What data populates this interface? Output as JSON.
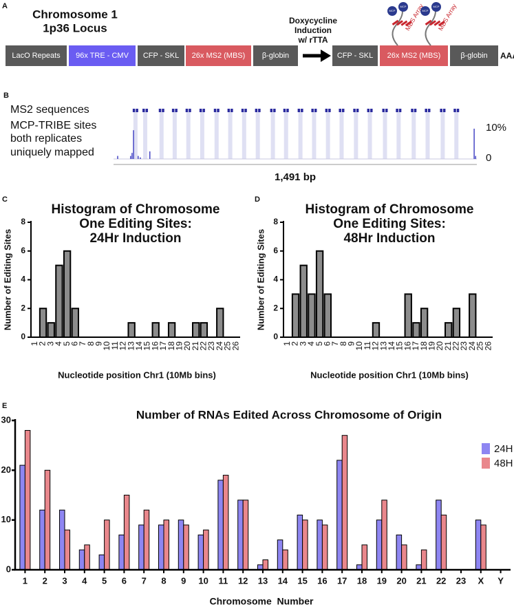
{
  "diagram": {
    "panel": "A",
    "locus": [
      "Chromosome 1",
      "1p36 Locus"
    ],
    "before": [
      {
        "label": "LacO Repeats",
        "color": "#595959"
      },
      {
        "label": "96x TRE - CMV",
        "color": "#6a5cf2"
      },
      {
        "label": "CFP - SKL",
        "color": "#595959"
      },
      {
        "label": "26x MS2 (MBS)",
        "color": "#d95a60"
      },
      {
        "label": "β-globin",
        "color": "#595959"
      }
    ],
    "induction": [
      "Doxycycline",
      "Induction",
      "w/ rTTA"
    ],
    "after": [
      {
        "label": "CFP - SKL",
        "color": "#595959"
      },
      {
        "label": "26x MS2 (MBS)",
        "color": "#d95a60"
      },
      {
        "label": "β-globin",
        "color": "#595959"
      }
    ],
    "tail": "AAAA",
    "array_label": "MBS Array",
    "mcp_label": "MCP"
  },
  "chart_data": [
    {
      "type": "track",
      "panel": "B",
      "track_labels": [
        "MS2 sequences",
        "MCP-TRIBE sites",
        "both replicates",
        "uniquely mapped"
      ],
      "ms2_positions": [
        90,
        130,
        197,
        251,
        307,
        364,
        423,
        479,
        536,
        592,
        654,
        708,
        767,
        823,
        880,
        936,
        995,
        1052,
        1114,
        1170,
        1232,
        1289,
        1351,
        1407
      ],
      "x": [
        17,
        70,
        76,
        82,
        101,
        110,
        149,
        1480,
        1486
      ],
      "values": [
        1,
        1,
        2,
        9.5,
        1,
        0.5,
        2.5,
        10,
        1
      ],
      "xlim": [
        0,
        1491
      ],
      "ylim": [
        0,
        10
      ],
      "yticks": [
        0,
        {
          "value": 10,
          "label": "10%"
        }
      ],
      "xlabel": "1,491 bp",
      "ms2_color": "#2a2a9e",
      "shade_color": "#dfe0f3",
      "color": "#4444c4"
    },
    {
      "type": "hist",
      "panel": "C",
      "title": [
        "Histogram of Chromosome",
        "One Editing Sites:",
        "24Hr Induction"
      ],
      "categories": [
        "1",
        "2",
        "3",
        "4",
        "5",
        "6",
        "7",
        "8",
        "9",
        "10",
        "11",
        "12",
        "13",
        "14",
        "15",
        "16",
        "17",
        "18",
        "19",
        "20",
        "21",
        "22",
        "23",
        "24",
        "25",
        "26"
      ],
      "values": [
        0,
        2,
        1,
        5,
        6,
        2,
        0,
        0,
        0,
        0,
        0,
        0,
        1,
        0,
        0,
        1,
        0,
        1,
        0,
        0,
        1,
        1,
        0,
        2,
        0,
        0
      ],
      "ylim": [
        0,
        8
      ],
      "yticks": [
        0,
        2,
        4,
        6,
        8
      ],
      "ylabel": "Number of Editing Sites",
      "xlabel": "Nucleotide position Chr1 (10Mb bins)",
      "color": "#8c8c8c"
    },
    {
      "type": "hist",
      "panel": "D",
      "title": [
        "Histogram of Chromosome",
        "One Editing Sites:",
        "48Hr Induction"
      ],
      "categories": [
        "1",
        "2",
        "3",
        "4",
        "5",
        "6",
        "7",
        "8",
        "9",
        "10",
        "11",
        "12",
        "13",
        "14",
        "15",
        "16",
        "17",
        "18",
        "19",
        "20",
        "21",
        "22",
        "23",
        "24",
        "25",
        "26"
      ],
      "values": [
        0,
        3,
        5,
        3,
        6,
        3,
        0,
        0,
        0,
        0,
        0,
        1,
        0,
        0,
        0,
        3,
        1,
        2,
        0,
        0,
        1,
        2,
        0,
        3,
        0,
        0
      ],
      "ylim": [
        0,
        8
      ],
      "yticks": [
        0,
        2,
        4,
        6,
        8
      ],
      "ylabel": "Number of Editing Sites",
      "xlabel": "Nucleotide position Chr1 (10Mb bins)",
      "color": "#8c8c8c"
    },
    {
      "type": "grouped",
      "panel": "E",
      "title": "Number of  RNAs Edited Across Chromosome of  Origin",
      "categories": [
        "1",
        "2",
        "3",
        "4",
        "5",
        "6",
        "7",
        "8",
        "9",
        "10",
        "11",
        "12",
        "13",
        "14",
        "15",
        "16",
        "17",
        "18",
        "19",
        "20",
        "21",
        "22",
        "23",
        "X",
        "Y"
      ],
      "series": [
        {
          "name": "24H",
          "color": "#8e86f2",
          "values": [
            21,
            12,
            12,
            4,
            3,
            7,
            9,
            9,
            10,
            7,
            18,
            14,
            1,
            6,
            11,
            10,
            22,
            1,
            10,
            7,
            1,
            14,
            0,
            10,
            0
          ]
        },
        {
          "name": "48H",
          "color": "#e9878c",
          "values": [
            28,
            20,
            8,
            5,
            10,
            15,
            12,
            10,
            9,
            8,
            19,
            14,
            2,
            4,
            10,
            9,
            27,
            5,
            14,
            5,
            4,
            11,
            0,
            9,
            0
          ]
        }
      ],
      "ylim": [
        0,
        30
      ],
      "yticks": [
        0,
        10,
        20,
        30
      ],
      "xlabel": "Chromosome  Number",
      "legend": "upper right"
    }
  ]
}
